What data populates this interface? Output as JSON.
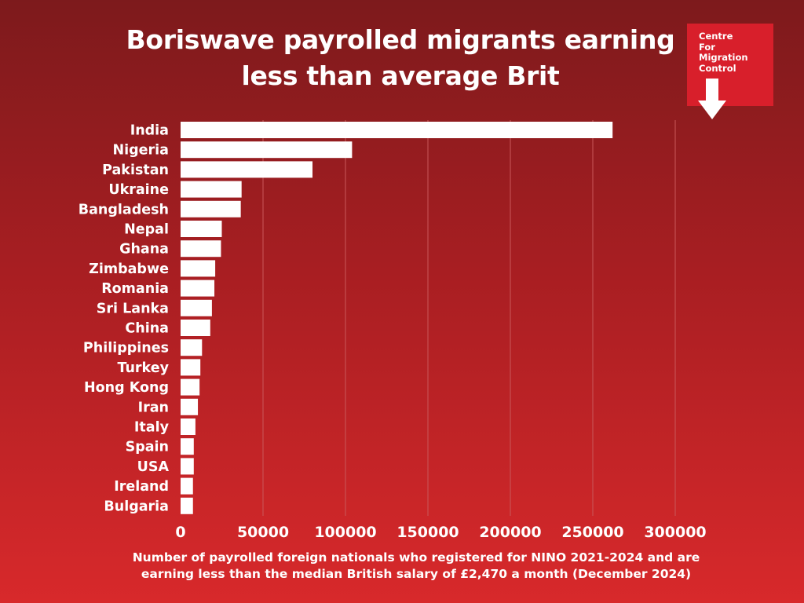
{
  "title_lines": [
    "Boriswave payrolled migrants earning",
    "less than average Brit"
  ],
  "logo": {
    "lines": [
      "Centre",
      "For",
      "Migration",
      "Control"
    ],
    "icon": "down-arrow-icon",
    "color": "#d81f2b"
  },
  "footnote_lines": [
    "Number of payrolled foreign nationals who registered for NINO 2021-2024 and are",
    "earning less than the median British salary of £2,470 a month (December 2024)"
  ],
  "colors": {
    "bar": "#ffffff",
    "text": "#ffffff",
    "gridline": "#c9585a"
  },
  "chart_data": {
    "type": "bar",
    "orientation": "horizontal",
    "categories": [
      "India",
      "Nigeria",
      "Pakistan",
      "Ukraine",
      "Bangladesh",
      "Nepal",
      "Ghana",
      "Zimbabwe",
      "Romania",
      "Sri Lanka",
      "China",
      "Philippines",
      "Turkey",
      "Hong Kong",
      "Iran",
      "Italy",
      "Spain",
      "USA",
      "Ireland",
      "Bulgaria"
    ],
    "values": [
      262000,
      104000,
      80000,
      37000,
      36500,
      25000,
      24500,
      21000,
      20500,
      19000,
      18000,
      13000,
      12000,
      11500,
      10500,
      9000,
      8000,
      8000,
      7500,
      7500
    ],
    "xlim": [
      0,
      300000
    ],
    "xticks": [
      0,
      50000,
      100000,
      150000,
      200000,
      250000,
      300000
    ],
    "grid": true
  }
}
